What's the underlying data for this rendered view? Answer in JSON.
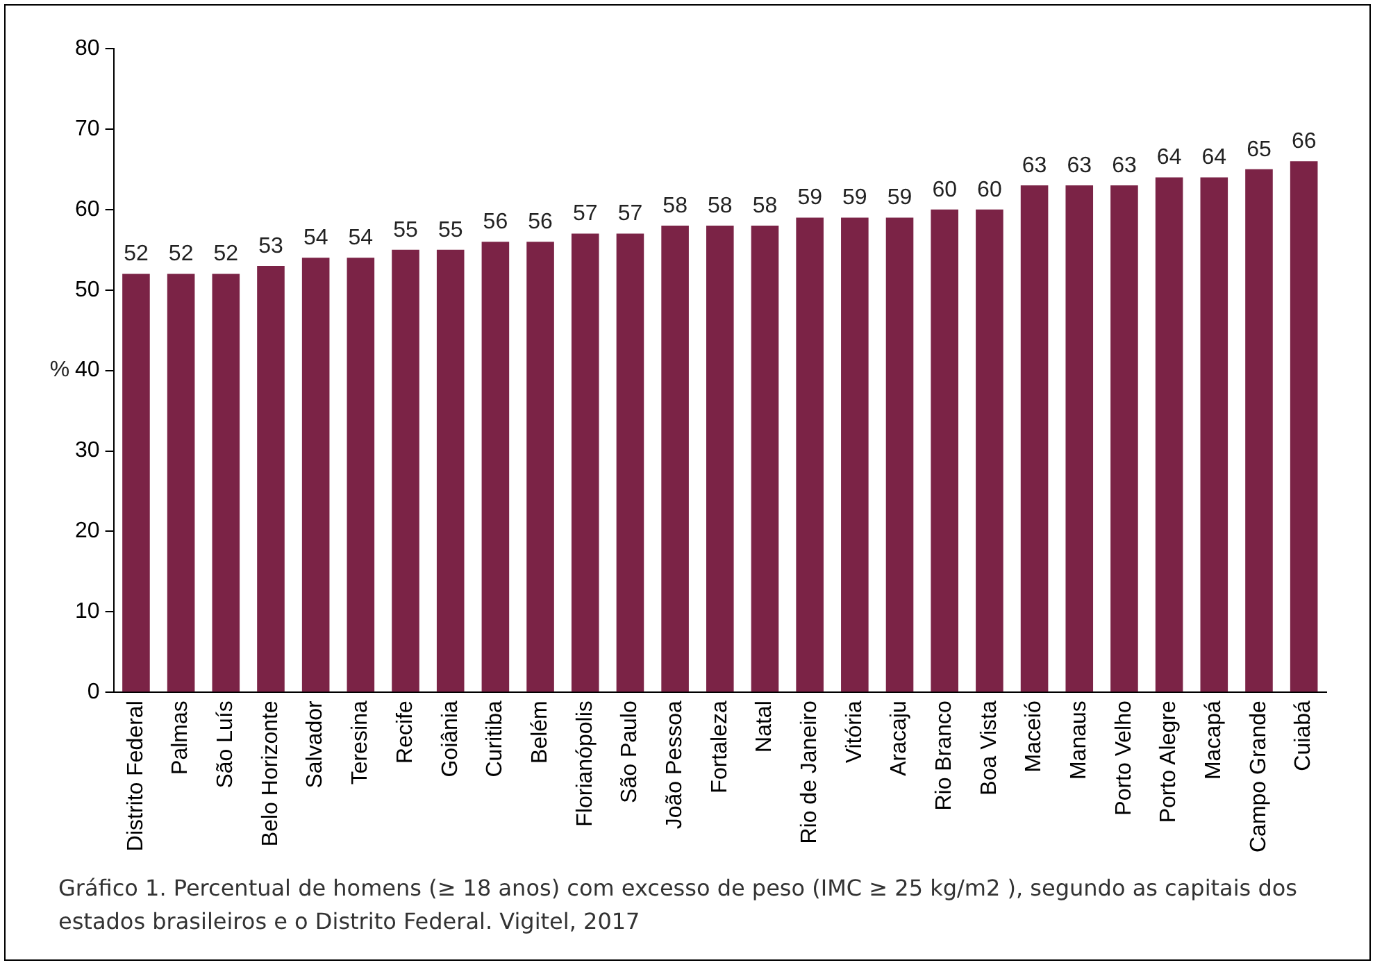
{
  "chart_data": {
    "type": "bar",
    "ylabel": "%",
    "categories": [
      "Distrito Federal",
      "Palmas",
      "São Luís",
      "Belo Horizonte",
      "Salvador",
      "Teresina",
      "Recife",
      "Goiânia",
      "Curitiba",
      "Belém",
      "Florianópolis",
      "São Paulo",
      "João Pessoa",
      "Fortaleza",
      "Natal",
      "Rio de Janeiro",
      "Vitória",
      "Aracaju",
      "Rio Branco",
      "Boa Vista",
      "Maceió",
      "Manaus",
      "Porto Velho",
      "Porto Alegre",
      "Macapá",
      "Campo Grande",
      "Cuiabá"
    ],
    "values": [
      52,
      52,
      52,
      53,
      54,
      54,
      55,
      55,
      56,
      56,
      57,
      57,
      58,
      58,
      58,
      59,
      59,
      59,
      60,
      60,
      63,
      63,
      63,
      64,
      64,
      65,
      66
    ],
    "color": "#7b2346",
    "ylim": [
      0,
      80
    ],
    "yticks": [
      0,
      10,
      20,
      30,
      40,
      50,
      60,
      70,
      80
    ],
    "grid": false,
    "data_labels": true,
    "annotations": [
      "Gráfico 1. Percentual de homens (≥ 18 anos) com excesso de peso (IMC ≥ 25 kg/m2 ), segundo as capitais dos estados brasileiros e o Distrito Federal. Vigitel, 2017"
    ]
  }
}
